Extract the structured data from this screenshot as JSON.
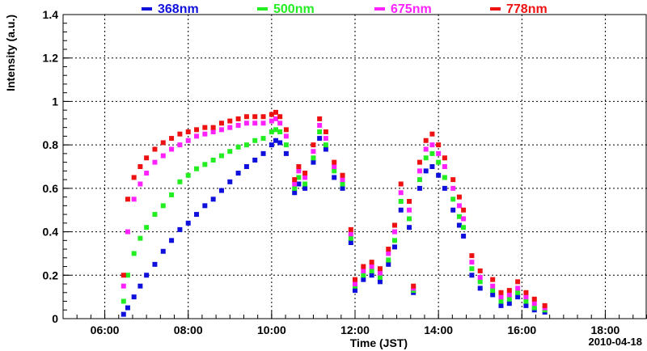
{
  "chart_data": {
    "type": "scatter",
    "title": "",
    "xlabel": "Time (JST)",
    "ylabel": "Intensity (a.u.)",
    "date_label": "2010-04-18",
    "x_unit": "hours",
    "xlim": [
      5.0,
      19.0
    ],
    "ylim": [
      0.0,
      1.4
    ],
    "x_ticks": [
      6,
      8,
      10,
      12,
      14,
      16,
      18
    ],
    "x_tick_labels": [
      "06:00",
      "08:00",
      "10:00",
      "12:00",
      "14:00",
      "16:00",
      "18:00"
    ],
    "y_ticks": [
      0,
      0.2,
      0.4,
      0.6,
      0.8,
      1.0,
      1.2,
      1.4
    ],
    "y_tick_labels": [
      "0",
      "0.2",
      "0.4",
      "0.6",
      "0.8",
      "1",
      "1.2",
      "1.4"
    ],
    "grid": true,
    "legend_position": "top",
    "series": [
      {
        "name": "368nm",
        "color": "#1010dd",
        "x": [
          6.45,
          6.55,
          6.7,
          6.85,
          7.0,
          7.2,
          7.4,
          7.6,
          7.8,
          8.0,
          8.2,
          8.4,
          8.6,
          8.8,
          9.0,
          9.2,
          9.4,
          9.6,
          9.8,
          10.0,
          10.1,
          10.2,
          10.35,
          10.55,
          10.65,
          10.8,
          11.0,
          11.15,
          11.3,
          11.5,
          11.7,
          11.9,
          12.0,
          12.2,
          12.4,
          12.6,
          12.8,
          12.95,
          13.1,
          13.3,
          13.4,
          13.55,
          13.7,
          13.85,
          14.0,
          14.15,
          14.35,
          14.5,
          14.6,
          14.8,
          15.0,
          15.3,
          15.5,
          15.7,
          15.9,
          16.1,
          16.3,
          16.55
        ],
        "y": [
          0.02,
          0.05,
          0.1,
          0.15,
          0.2,
          0.25,
          0.31,
          0.36,
          0.41,
          0.44,
          0.48,
          0.52,
          0.55,
          0.59,
          0.63,
          0.67,
          0.7,
          0.73,
          0.76,
          0.8,
          0.82,
          0.81,
          0.76,
          0.58,
          0.62,
          0.6,
          0.72,
          0.83,
          0.78,
          0.65,
          0.6,
          0.35,
          0.13,
          0.18,
          0.2,
          0.17,
          0.25,
          0.33,
          0.5,
          0.42,
          0.12,
          0.6,
          0.68,
          0.7,
          0.66,
          0.6,
          0.5,
          0.43,
          0.38,
          0.2,
          0.14,
          0.11,
          0.06,
          0.07,
          0.1,
          0.06,
          0.04,
          0.03
        ]
      },
      {
        "name": "500nm",
        "color": "#22ee22",
        "x": [
          6.45,
          6.55,
          6.7,
          6.85,
          7.0,
          7.2,
          7.4,
          7.6,
          7.8,
          8.0,
          8.2,
          8.4,
          8.6,
          8.8,
          9.0,
          9.2,
          9.4,
          9.6,
          9.8,
          10.0,
          10.1,
          10.2,
          10.35,
          10.55,
          10.65,
          10.8,
          11.0,
          11.15,
          11.3,
          11.5,
          11.7,
          11.9,
          12.0,
          12.2,
          12.4,
          12.6,
          12.8,
          12.95,
          13.1,
          13.3,
          13.4,
          13.55,
          13.7,
          13.85,
          14.0,
          14.15,
          14.35,
          14.5,
          14.6,
          14.8,
          15.0,
          15.3,
          15.5,
          15.7,
          15.9,
          16.1,
          16.3,
          16.55
        ],
        "y": [
          0.08,
          0.2,
          0.3,
          0.37,
          0.42,
          0.48,
          0.52,
          0.57,
          0.63,
          0.66,
          0.69,
          0.71,
          0.73,
          0.75,
          0.77,
          0.79,
          0.8,
          0.82,
          0.83,
          0.86,
          0.87,
          0.86,
          0.8,
          0.6,
          0.65,
          0.62,
          0.74,
          0.86,
          0.8,
          0.68,
          0.62,
          0.37,
          0.15,
          0.2,
          0.22,
          0.19,
          0.27,
          0.36,
          0.54,
          0.46,
          0.13,
          0.64,
          0.74,
          0.76,
          0.72,
          0.65,
          0.55,
          0.47,
          0.42,
          0.23,
          0.17,
          0.13,
          0.08,
          0.09,
          0.12,
          0.08,
          0.05,
          0.04
        ]
      },
      {
        "name": "675nm",
        "color": "#ff22ff",
        "x": [
          6.45,
          6.55,
          6.7,
          6.85,
          7.0,
          7.2,
          7.4,
          7.6,
          7.8,
          8.0,
          8.2,
          8.4,
          8.6,
          8.8,
          9.0,
          9.2,
          9.4,
          9.6,
          9.8,
          10.0,
          10.1,
          10.2,
          10.35,
          10.55,
          10.65,
          10.8,
          11.0,
          11.15,
          11.3,
          11.5,
          11.7,
          11.9,
          12.0,
          12.2,
          12.4,
          12.6,
          12.8,
          12.95,
          13.1,
          13.3,
          13.4,
          13.55,
          13.7,
          13.85,
          14.0,
          14.15,
          14.35,
          14.5,
          14.6,
          14.8,
          15.0,
          15.3,
          15.5,
          15.7,
          15.9,
          16.1,
          16.3,
          16.55
        ],
        "y": [
          0.15,
          0.4,
          0.55,
          0.62,
          0.67,
          0.72,
          0.75,
          0.78,
          0.8,
          0.82,
          0.84,
          0.85,
          0.86,
          0.87,
          0.88,
          0.89,
          0.9,
          0.9,
          0.9,
          0.91,
          0.92,
          0.9,
          0.84,
          0.62,
          0.68,
          0.65,
          0.77,
          0.89,
          0.83,
          0.7,
          0.64,
          0.39,
          0.16,
          0.22,
          0.24,
          0.21,
          0.3,
          0.4,
          0.58,
          0.5,
          0.14,
          0.68,
          0.78,
          0.8,
          0.76,
          0.7,
          0.6,
          0.52,
          0.46,
          0.26,
          0.19,
          0.15,
          0.1,
          0.11,
          0.14,
          0.1,
          0.07,
          0.05
        ]
      },
      {
        "name": "778nm",
        "color": "#ee1111",
        "x": [
          6.45,
          6.55,
          6.7,
          6.85,
          7.0,
          7.2,
          7.4,
          7.6,
          7.8,
          8.0,
          8.2,
          8.4,
          8.6,
          8.8,
          9.0,
          9.2,
          9.4,
          9.6,
          9.8,
          10.0,
          10.1,
          10.2,
          10.35,
          10.55,
          10.65,
          10.8,
          11.0,
          11.15,
          11.3,
          11.5,
          11.7,
          11.9,
          12.0,
          12.2,
          12.4,
          12.6,
          12.8,
          12.95,
          13.1,
          13.3,
          13.4,
          13.55,
          13.7,
          13.85,
          14.0,
          14.15,
          14.35,
          14.5,
          14.6,
          14.8,
          15.0,
          15.3,
          15.5,
          15.7,
          15.9,
          16.1,
          16.3,
          16.55
        ],
        "y": [
          0.2,
          0.55,
          0.65,
          0.7,
          0.74,
          0.78,
          0.81,
          0.83,
          0.85,
          0.86,
          0.87,
          0.88,
          0.88,
          0.9,
          0.91,
          0.92,
          0.93,
          0.93,
          0.93,
          0.94,
          0.95,
          0.93,
          0.87,
          0.64,
          0.7,
          0.67,
          0.8,
          0.92,
          0.86,
          0.72,
          0.66,
          0.41,
          0.18,
          0.24,
          0.26,
          0.23,
          0.32,
          0.43,
          0.62,
          0.54,
          0.15,
          0.72,
          0.82,
          0.85,
          0.8,
          0.74,
          0.64,
          0.56,
          0.5,
          0.29,
          0.22,
          0.18,
          0.12,
          0.13,
          0.17,
          0.12,
          0.09,
          0.06
        ]
      }
    ]
  }
}
